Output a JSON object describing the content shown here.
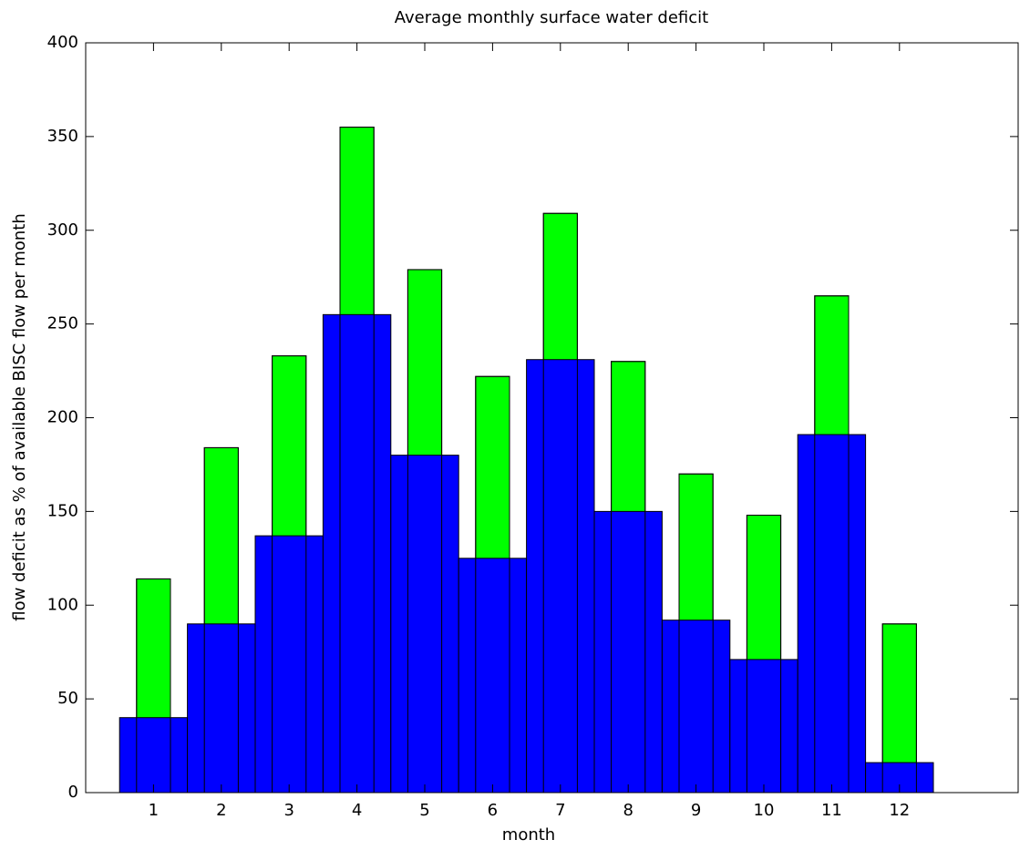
{
  "chart_data": {
    "type": "bar",
    "title": "Average monthly surface water deficit",
    "xlabel": "month",
    "ylabel": "flow deficit as % of available BISC flow per month",
    "x": [
      1,
      2,
      3,
      4,
      5,
      6,
      7,
      8,
      9,
      10,
      11,
      12
    ],
    "xlim": [
      0,
      13.75
    ],
    "xticks": [
      1,
      2,
      3,
      4,
      5,
      6,
      7,
      8,
      9,
      10,
      11,
      12
    ],
    "ylim": [
      0,
      400
    ],
    "yticks": [
      0,
      50,
      100,
      150,
      200,
      250,
      300,
      350,
      400
    ],
    "series": [
      {
        "color": "#00ff00",
        "values": [
          114,
          184,
          233,
          355,
          279,
          222,
          309,
          230,
          170,
          148,
          265,
          90
        ]
      },
      {
        "color": "#0000ff",
        "values": [
          40,
          90,
          137,
          255,
          180,
          125,
          231,
          150,
          92,
          71,
          191,
          16
        ]
      }
    ]
  }
}
